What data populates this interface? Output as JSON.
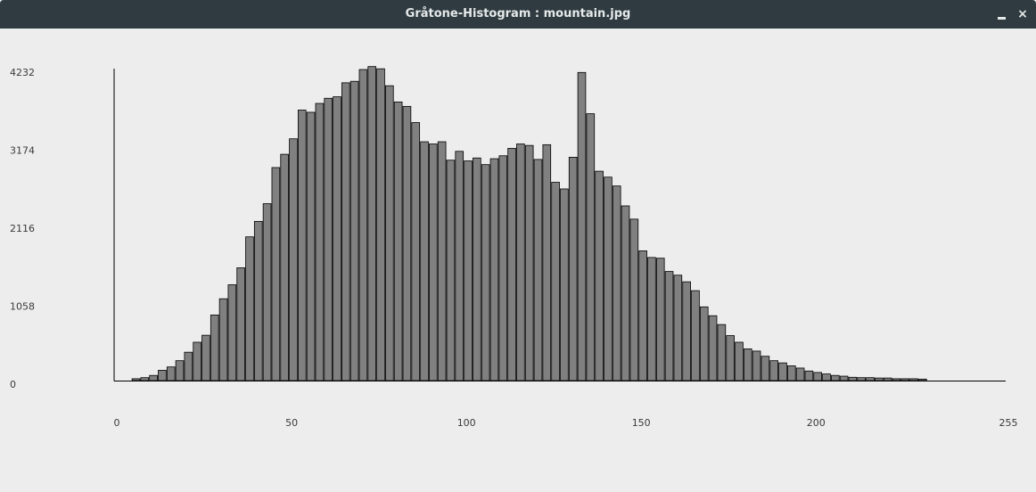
{
  "window": {
    "title": "Gråtone-Histogram : mountain.jpg",
    "minimize_icon": "minimize-icon",
    "close_icon": "close-icon",
    "close_glyph": "×"
  },
  "chart_data": {
    "type": "bar",
    "title": "",
    "xlabel": "",
    "ylabel": "",
    "bin_width": 2.5,
    "xlim": [
      0,
      255
    ],
    "ylim": [
      0,
      4232
    ],
    "x_ticks": [
      0,
      50,
      100,
      150,
      200,
      255
    ],
    "y_ticks": [
      0,
      1058,
      2116,
      3174,
      4232
    ],
    "bar_color": "#808080",
    "bar_edge_color": "#000000",
    "grid": false,
    "values": [
      0,
      0,
      25,
      40,
      70,
      140,
      185,
      270,
      385,
      520,
      615,
      890,
      1110,
      1300,
      1530,
      1950,
      2160,
      2400,
      2890,
      3070,
      3280,
      3670,
      3640,
      3760,
      3830,
      3850,
      4040,
      4060,
      4220,
      4260,
      4230,
      4000,
      3780,
      3720,
      3500,
      3240,
      3210,
      3240,
      2990,
      3110,
      2980,
      3020,
      2930,
      3010,
      3050,
      3150,
      3210,
      3190,
      3000,
      3200,
      2690,
      2600,
      3030,
      4180,
      3620,
      2840,
      2760,
      2640,
      2370,
      2190,
      1760,
      1670,
      1660,
      1480,
      1430,
      1340,
      1220,
      1000,
      880,
      760,
      610,
      520,
      430,
      400,
      330,
      270,
      240,
      200,
      170,
      130,
      110,
      90,
      70,
      60,
      45,
      40,
      40,
      35,
      35,
      25,
      25,
      25,
      20,
      0,
      0,
      0,
      0,
      0,
      0,
      0,
      0,
      0
    ]
  }
}
